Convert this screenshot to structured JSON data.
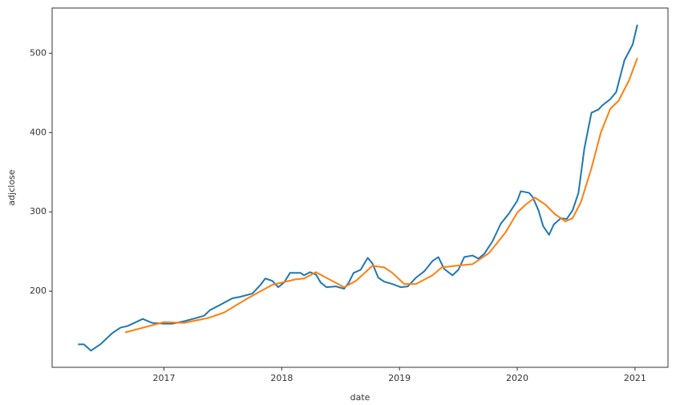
{
  "chart_data": {
    "type": "line",
    "xlabel": "date",
    "ylabel": "adjclose",
    "xlim": [
      2016.05,
      2021.28
    ],
    "ylim": [
      104,
      557
    ],
    "xticks": [
      2017,
      2018,
      2019,
      2020,
      2021
    ],
    "yticks": [
      200,
      300,
      400,
      500
    ],
    "grid": false,
    "series": [
      {
        "color": "#1f77b4",
        "x": [
          2016.27,
          2016.32,
          2016.38,
          2016.46,
          2016.56,
          2016.63,
          2016.69,
          2016.82,
          2016.9,
          2017.0,
          2017.07,
          2017.17,
          2017.27,
          2017.34,
          2017.39,
          2017.48,
          2017.58,
          2017.65,
          2017.75,
          2017.82,
          2017.86,
          2017.92,
          2017.97,
          2018.02,
          2018.07,
          2018.16,
          2018.19,
          2018.24,
          2018.29,
          2018.33,
          2018.38,
          2018.46,
          2018.53,
          2018.57,
          2018.61,
          2018.67,
          2018.73,
          2018.77,
          2018.82,
          2018.87,
          2018.94,
          2019.01,
          2019.07,
          2019.14,
          2019.21,
          2019.28,
          2019.33,
          2019.38,
          2019.45,
          2019.5,
          2019.55,
          2019.62,
          2019.67,
          2019.72,
          2019.79,
          2019.86,
          2019.93,
          2020.0,
          2020.03,
          2020.1,
          2020.13,
          2020.18,
          2020.22,
          2020.27,
          2020.31,
          2020.37,
          2020.42,
          2020.47,
          2020.52,
          2020.57,
          2020.63,
          2020.69,
          2020.72,
          2020.79,
          2020.84,
          2020.91,
          2020.98,
          2021.02
        ],
        "values": [
          133,
          133,
          125,
          133,
          147,
          154,
          156,
          165,
          160,
          159,
          159,
          162,
          166,
          169,
          176,
          183,
          191,
          193,
          197,
          208,
          216,
          213,
          205,
          211,
          223,
          223,
          220,
          224,
          221,
          211,
          205,
          206,
          203,
          211,
          223,
          227,
          242,
          235,
          217,
          212,
          209,
          205,
          206,
          217,
          225,
          238,
          243,
          228,
          220,
          227,
          243,
          245,
          241,
          247,
          263,
          285,
          298,
          314,
          326,
          324,
          319,
          302,
          282,
          271,
          284,
          292,
          291,
          302,
          324,
          380,
          425,
          429,
          434,
          442,
          451,
          491,
          511,
          536
        ]
      },
      {
        "color": "#ff7f0e",
        "x": [
          2016.67,
          2017.0,
          2017.17,
          2017.37,
          2017.51,
          2017.71,
          2017.92,
          2018.12,
          2018.19,
          2018.29,
          2018.39,
          2018.53,
          2018.63,
          2018.77,
          2018.87,
          2018.94,
          2019.04,
          2019.14,
          2019.28,
          2019.36,
          2019.48,
          2019.62,
          2019.76,
          2019.9,
          2020.0,
          2020.07,
          2020.15,
          2020.24,
          2020.32,
          2020.41,
          2020.47,
          2020.54,
          2020.63,
          2020.71,
          2020.79,
          2020.86,
          2020.95,
          2021.02
        ],
        "values": [
          148,
          161,
          160,
          166,
          173,
          191,
          208,
          215,
          216,
          224,
          216,
          205,
          213,
          232,
          230,
          223,
          209,
          209,
          220,
          230,
          232,
          234,
          248,
          274,
          299,
          309,
          318,
          309,
          297,
          288,
          292,
          312,
          355,
          400,
          430,
          440,
          466,
          494
        ]
      }
    ]
  }
}
